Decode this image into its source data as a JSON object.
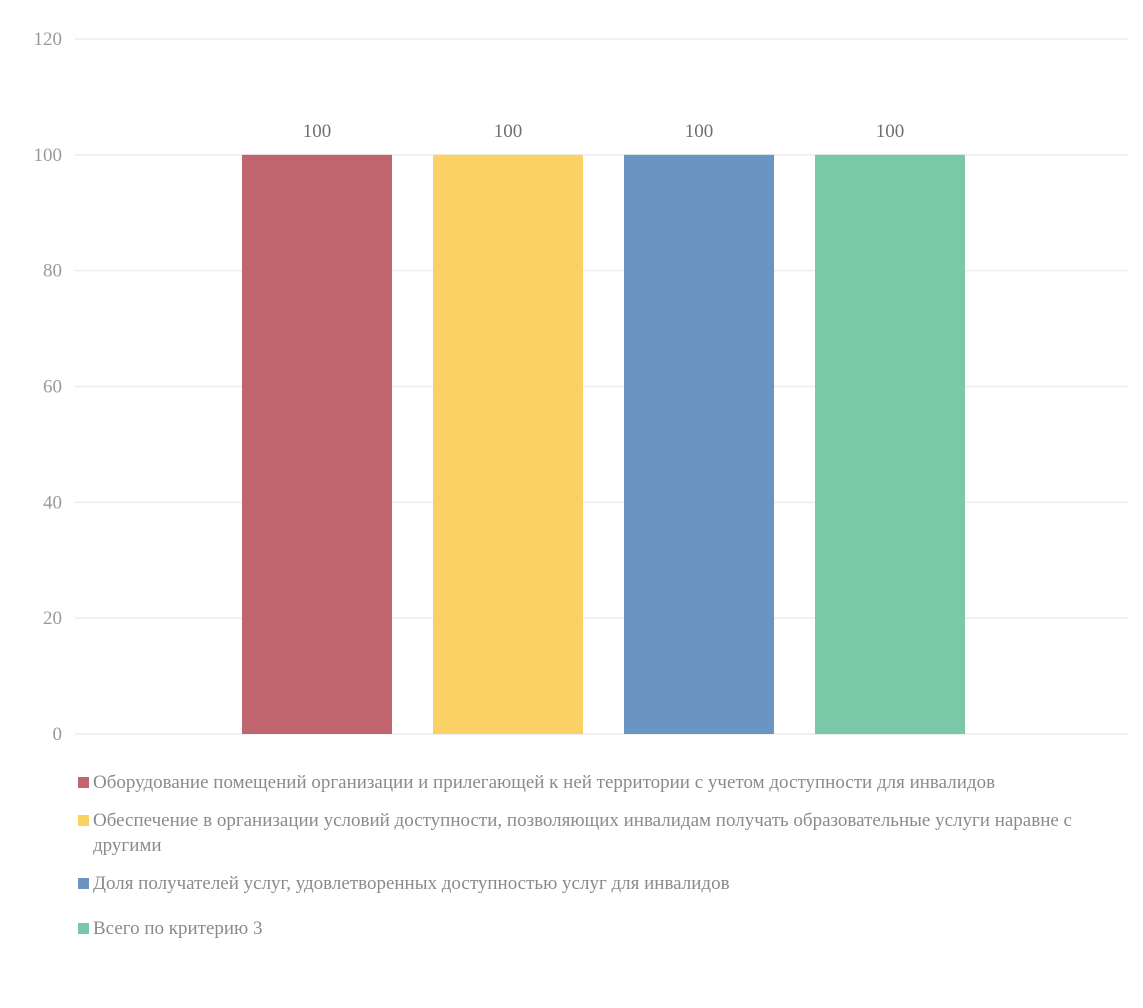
{
  "chart_data": {
    "type": "bar",
    "categories": [
      "Оборудование помещений организации и прилегающей к ней территории с учетом доступности для инвалидов",
      "Обеспечение в организации условий доступности, позволяющих инвалидам получать образовательные услуги наравне с другими",
      "Доля получателей услуг, удовлетворенных доступностью услуг для инвалидов",
      "Всего по критерию 3"
    ],
    "values": [
      100,
      100,
      100,
      100
    ],
    "data_labels": [
      "100",
      "100",
      "100",
      "100"
    ],
    "colors": [
      "#c0646e",
      "#fbd165",
      "#6a94c2",
      "#79c9a9"
    ],
    "ylim": [
      0,
      120
    ],
    "yticks": [
      "0",
      "20",
      "40",
      "60",
      "80",
      "100",
      "120"
    ],
    "grid": true,
    "legend_position": "bottom"
  }
}
